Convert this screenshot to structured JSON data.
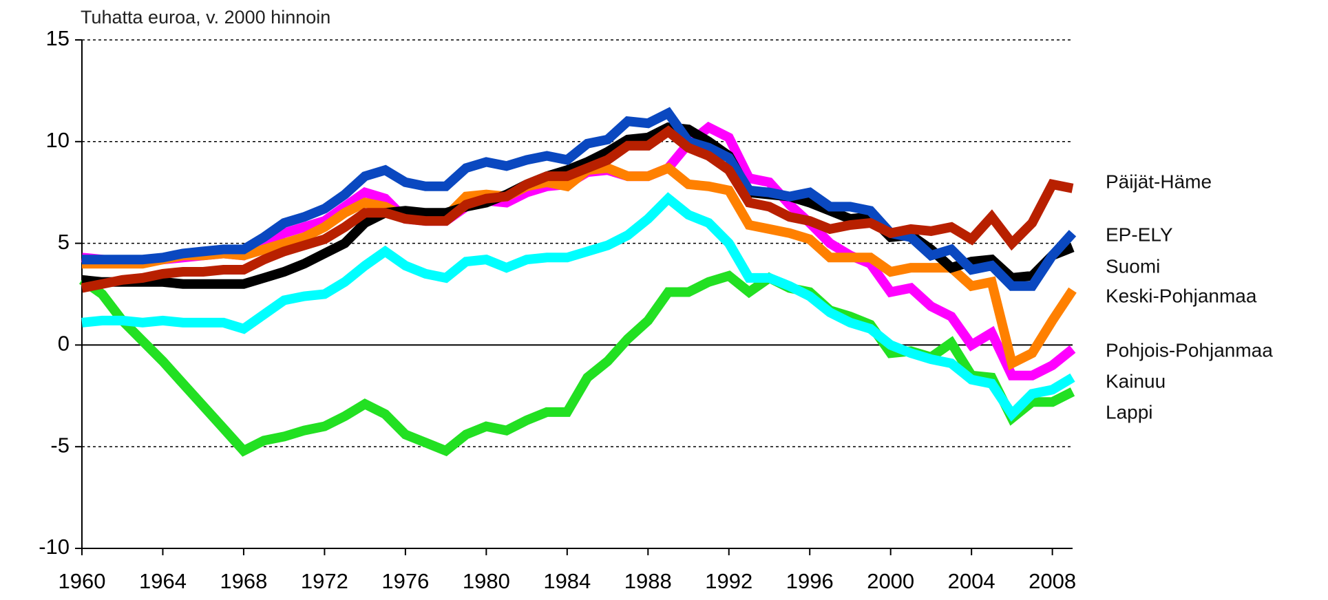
{
  "chart_data": {
    "type": "line",
    "subtitle": "Tuhatta euroa, v. 2000 hinnoin",
    "x": [
      1960,
      1961,
      1962,
      1963,
      1964,
      1965,
      1966,
      1967,
      1968,
      1969,
      1970,
      1971,
      1972,
      1973,
      1974,
      1975,
      1976,
      1977,
      1978,
      1979,
      1980,
      1981,
      1982,
      1983,
      1984,
      1985,
      1986,
      1987,
      1988,
      1989,
      1990,
      1991,
      1992,
      1993,
      1994,
      1995,
      1996,
      1997,
      1998,
      1999,
      2000,
      2001,
      2002,
      2003,
      2004,
      2005,
      2006,
      2007,
      2008,
      2009
    ],
    "xlim": [
      1960,
      2009
    ],
    "xticks": [
      1960,
      1964,
      1968,
      1972,
      1976,
      1980,
      1984,
      1988,
      1992,
      1996,
      2000,
      2004,
      2008
    ],
    "ylim": [
      -10,
      15
    ],
    "yticks": [
      -10,
      -5,
      0,
      5,
      10,
      15
    ],
    "grid": true,
    "series": [
      {
        "name": "Päijät-Häme",
        "color": "#b82000",
        "values": [
          2.8,
          3.0,
          3.2,
          3.3,
          3.5,
          3.6,
          3.6,
          3.7,
          3.7,
          4.2,
          4.6,
          4.9,
          5.2,
          5.8,
          6.5,
          6.5,
          6.2,
          6.1,
          6.1,
          6.9,
          7.2,
          7.3,
          7.9,
          8.3,
          8.3,
          8.7,
          9.1,
          9.8,
          9.8,
          10.5,
          9.7,
          9.3,
          8.6,
          7.0,
          6.8,
          6.3,
          6.1,
          5.7,
          5.9,
          6.0,
          5.5,
          5.7,
          5.6,
          5.8,
          5.2,
          6.3,
          5.0,
          6.0,
          7.9,
          7.7
        ]
      },
      {
        "name": "EP-ELY",
        "color": "#0a48c0",
        "values": [
          4.2,
          4.2,
          4.2,
          4.2,
          4.3,
          4.5,
          4.6,
          4.7,
          4.7,
          5.3,
          6.0,
          6.3,
          6.7,
          7.4,
          8.3,
          8.6,
          8.0,
          7.8,
          7.8,
          8.7,
          9.0,
          8.8,
          9.1,
          9.3,
          9.1,
          9.9,
          10.1,
          11.0,
          10.9,
          11.4,
          10.0,
          9.7,
          9.2,
          7.6,
          7.5,
          7.3,
          7.5,
          6.8,
          6.8,
          6.6,
          5.5,
          5.3,
          4.4,
          4.7,
          3.7,
          3.9,
          2.9,
          2.9,
          4.4,
          5.5
        ]
      },
      {
        "name": "Suomi",
        "color": "#000000",
        "values": [
          3.2,
          3.1,
          3.1,
          3.1,
          3.1,
          3.0,
          3.0,
          3.0,
          3.0,
          3.3,
          3.6,
          4.0,
          4.5,
          5.0,
          6.0,
          6.5,
          6.6,
          6.5,
          6.5,
          6.8,
          7.0,
          7.4,
          7.9,
          8.3,
          8.6,
          9.0,
          9.5,
          10.1,
          10.2,
          10.7,
          10.6,
          10.0,
          9.3,
          7.5,
          7.4,
          7.3,
          7.0,
          6.6,
          6.2,
          6.3,
          5.3,
          5.4,
          4.7,
          3.8,
          4.1,
          4.2,
          3.3,
          3.4,
          4.4,
          4.8
        ]
      },
      {
        "name": "Keski-Pohjanmaa",
        "color": "#ff8000",
        "values": [
          4.0,
          4.0,
          4.0,
          4.0,
          4.2,
          4.4,
          4.4,
          4.5,
          4.4,
          4.7,
          5.0,
          5.3,
          5.8,
          6.5,
          7.0,
          6.8,
          6.3,
          6.2,
          6.3,
          7.3,
          7.4,
          7.3,
          7.8,
          8.0,
          7.8,
          8.6,
          8.7,
          8.3,
          8.3,
          8.7,
          7.9,
          7.8,
          7.6,
          5.9,
          5.7,
          5.5,
          5.2,
          4.3,
          4.3,
          4.3,
          3.6,
          3.8,
          3.8,
          3.8,
          2.9,
          3.1,
          -0.9,
          -0.4,
          1.2,
          2.7
        ]
      },
      {
        "name": "Pohjois-Pohjanmaa",
        "color": "#ff00ff",
        "values": [
          4.3,
          4.2,
          4.1,
          4.1,
          4.2,
          4.3,
          4.4,
          4.5,
          4.4,
          5.0,
          5.5,
          5.8,
          6.1,
          6.8,
          7.5,
          7.2,
          6.2,
          6.1,
          6.1,
          6.8,
          7.1,
          7.0,
          7.5,
          7.8,
          7.9,
          8.5,
          8.6,
          8.3,
          8.3,
          8.7,
          9.9,
          10.7,
          10.2,
          8.2,
          8.0,
          6.9,
          6.0,
          5.0,
          4.4,
          4.0,
          2.6,
          2.8,
          1.9,
          1.4,
          0.0,
          0.6,
          -1.5,
          -1.5,
          -1.0,
          -0.2
        ]
      },
      {
        "name": "Kainuu",
        "color": "#00ffff",
        "values": [
          1.1,
          1.2,
          1.2,
          1.1,
          1.2,
          1.1,
          1.1,
          1.1,
          0.8,
          1.5,
          2.2,
          2.4,
          2.5,
          3.1,
          3.9,
          4.6,
          3.9,
          3.5,
          3.3,
          4.1,
          4.2,
          3.8,
          4.2,
          4.3,
          4.3,
          4.6,
          4.9,
          5.4,
          6.2,
          7.2,
          6.4,
          6.0,
          5.0,
          3.3,
          3.3,
          2.9,
          2.4,
          1.6,
          1.1,
          0.8,
          0.0,
          -0.4,
          -0.7,
          -0.9,
          -1.7,
          -1.9,
          -3.4,
          -2.4,
          -2.2,
          -1.6
        ]
      },
      {
        "name": "Lappi",
        "color": "#22e022",
        "values": [
          3.2,
          2.5,
          1.2,
          0.2,
          -0.8,
          -1.9,
          -3.0,
          -4.1,
          -5.2,
          -4.7,
          -4.5,
          -4.2,
          -4.0,
          -3.5,
          -2.9,
          -3.4,
          -4.4,
          -4.8,
          -5.2,
          -4.4,
          -4.0,
          -4.2,
          -3.7,
          -3.3,
          -3.3,
          -1.6,
          -0.8,
          0.3,
          1.2,
          2.6,
          2.6,
          3.1,
          3.4,
          2.6,
          3.3,
          2.8,
          2.6,
          1.7,
          1.4,
          1.0,
          -0.4,
          -0.3,
          -0.6,
          0.1,
          -1.5,
          -1.6,
          -3.6,
          -2.8,
          -2.8,
          -2.3
        ]
      }
    ]
  }
}
